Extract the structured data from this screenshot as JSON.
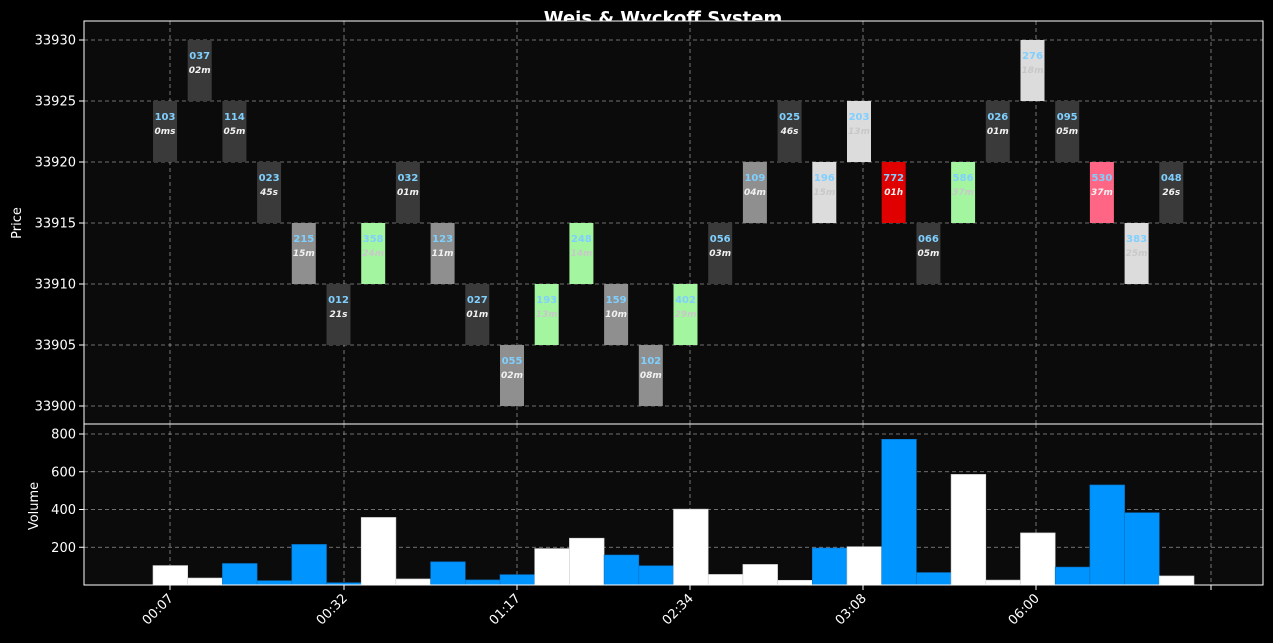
{
  "chart_data": [
    {
      "type": "bar",
      "title": "Weis & Wyckoff System",
      "ylabel": "Price",
      "ylim": [
        33899,
        33932
      ],
      "yticks": [
        33900,
        33905,
        33910,
        33915,
        33920,
        33925,
        33930
      ],
      "bricks": [
        {
          "low": 33920,
          "high": 33925,
          "volume": "103",
          "duration": "0ms",
          "color": "#3a3a3a"
        },
        {
          "low": 33925,
          "high": 33930,
          "volume": "037",
          "duration": "02m",
          "color": "#3a3a3a"
        },
        {
          "low": 33920,
          "high": 33925,
          "volume": "114",
          "duration": "05m",
          "color": "#3a3a3a"
        },
        {
          "low": 33915,
          "high": 33920,
          "volume": "023",
          "duration": "45s",
          "color": "#3a3a3a"
        },
        {
          "low": 33910,
          "high": 33915,
          "volume": "215",
          "duration": "15m",
          "color": "#8f8f8f"
        },
        {
          "low": 33905,
          "high": 33910,
          "volume": "012",
          "duration": "21s",
          "color": "#3a3a3a"
        },
        {
          "low": 33910,
          "high": 33915,
          "volume": "358",
          "duration": "24m",
          "color": "#a3f5a0"
        },
        {
          "low": 33915,
          "high": 33920,
          "volume": "032",
          "duration": "01m",
          "color": "#3a3a3a"
        },
        {
          "low": 33910,
          "high": 33915,
          "volume": "123",
          "duration": "11m",
          "color": "#8f8f8f"
        },
        {
          "low": 33905,
          "high": 33910,
          "volume": "027",
          "duration": "01m",
          "color": "#3a3a3a"
        },
        {
          "low": 33900,
          "high": 33905,
          "volume": "055",
          "duration": "02m",
          "color": "#8f8f8f"
        },
        {
          "low": 33905,
          "high": 33910,
          "volume": "193",
          "duration": "13m",
          "color": "#a3f5a0"
        },
        {
          "low": 33910,
          "high": 33915,
          "volume": "248",
          "duration": "14m",
          "color": "#a3f5a0"
        },
        {
          "low": 33905,
          "high": 33910,
          "volume": "159",
          "duration": "10m",
          "color": "#8f8f8f"
        },
        {
          "low": 33900,
          "high": 33905,
          "volume": "102",
          "duration": "08m",
          "color": "#8f8f8f"
        },
        {
          "low": 33905,
          "high": 33910,
          "volume": "402",
          "duration": "29m",
          "color": "#a3f5a0"
        },
        {
          "low": 33910,
          "high": 33915,
          "volume": "056",
          "duration": "03m",
          "color": "#3a3a3a"
        },
        {
          "low": 33915,
          "high": 33920,
          "volume": "109",
          "duration": "04m",
          "color": "#8f8f8f"
        },
        {
          "low": 33920,
          "high": 33925,
          "volume": "025",
          "duration": "46s",
          "color": "#3a3a3a"
        },
        {
          "low": 33915,
          "high": 33920,
          "volume": "196",
          "duration": "15m",
          "color": "#dcdcdc"
        },
        {
          "low": 33920,
          "high": 33925,
          "volume": "203",
          "duration": "13m",
          "color": "#dcdcdc"
        },
        {
          "low": 33915,
          "high": 33920,
          "volume": "772",
          "duration": "01h",
          "color": "#e00000"
        },
        {
          "low": 33910,
          "high": 33915,
          "volume": "066",
          "duration": "05m",
          "color": "#3a3a3a"
        },
        {
          "low": 33915,
          "high": 33920,
          "volume": "586",
          "duration": "37m",
          "color": "#a3f5a0"
        },
        {
          "low": 33920,
          "high": 33925,
          "volume": "026",
          "duration": "01m",
          "color": "#3a3a3a"
        },
        {
          "low": 33925,
          "high": 33930,
          "volume": "276",
          "duration": "18m",
          "color": "#dcdcdc"
        },
        {
          "low": 33920,
          "high": 33925,
          "volume": "095",
          "duration": "05m",
          "color": "#3a3a3a"
        },
        {
          "low": 33915,
          "high": 33920,
          "volume": "530",
          "duration": "37m",
          "color": "#ff6685"
        },
        {
          "low": 33910,
          "high": 33915,
          "volume": "383",
          "duration": "25m",
          "color": "#dcdcdc"
        },
        {
          "low": 33915,
          "high": 33920,
          "volume": "048",
          "duration": "26s",
          "color": "#3a3a3a"
        }
      ]
    },
    {
      "type": "bar",
      "ylabel": "Volume",
      "ylim": [
        0,
        850
      ],
      "yticks": [
        200,
        400,
        600,
        800
      ],
      "xticks": [
        "00:07",
        "00:32",
        "01:17",
        "02:34",
        "03:08",
        "06:00",
        ""
      ],
      "values": [
        103,
        37,
        114,
        23,
        215,
        12,
        358,
        32,
        123,
        27,
        55,
        193,
        248,
        159,
        102,
        402,
        56,
        109,
        25,
        196,
        203,
        772,
        66,
        586,
        26,
        276,
        95,
        530,
        383,
        48
      ],
      "colors": [
        "#ffffff",
        "#ffffff",
        "#0094ff",
        "#0094ff",
        "#0094ff",
        "#0094ff",
        "#ffffff",
        "#ffffff",
        "#0094ff",
        "#0094ff",
        "#0094ff",
        "#ffffff",
        "#ffffff",
        "#0094ff",
        "#0094ff",
        "#ffffff",
        "#ffffff",
        "#ffffff",
        "#ffffff",
        "#0094ff",
        "#ffffff",
        "#0094ff",
        "#0094ff",
        "#ffffff",
        "#ffffff",
        "#ffffff",
        "#0094ff",
        "#0094ff",
        "#0094ff",
        "#ffffff"
      ]
    }
  ],
  "colors": {
    "background": "#000000",
    "plot_background": "#0b0b0b",
    "up_volume": "#ffffff",
    "down_volume": "#0094ff"
  }
}
